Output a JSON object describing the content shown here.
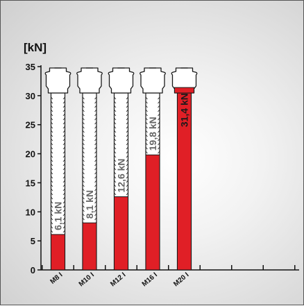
{
  "chart_data": {
    "type": "bar",
    "title": "",
    "ylabel": "[kN]",
    "xlabel": "",
    "ylim": [
      0,
      35
    ],
    "yticks": [
      0,
      5,
      10,
      15,
      20,
      25,
      30,
      35
    ],
    "categories": [
      "M8 I",
      "M10 I",
      "M12 I",
      "M16 I",
      "M20 I"
    ],
    "values": [
      6.1,
      8.1,
      12.6,
      19.8,
      31.4
    ],
    "value_labels": [
      "6,1 kN",
      "8,1 kN",
      "12,6 kN",
      "19,8 kN",
      "31,4 kN"
    ],
    "empty_slots": 3,
    "grid": false,
    "colors": {
      "bar": "#e01f26",
      "bar_outline": "#1a1a1a",
      "label_on_white": "#666666",
      "label_on_red": "#1a1a1a"
    }
  }
}
